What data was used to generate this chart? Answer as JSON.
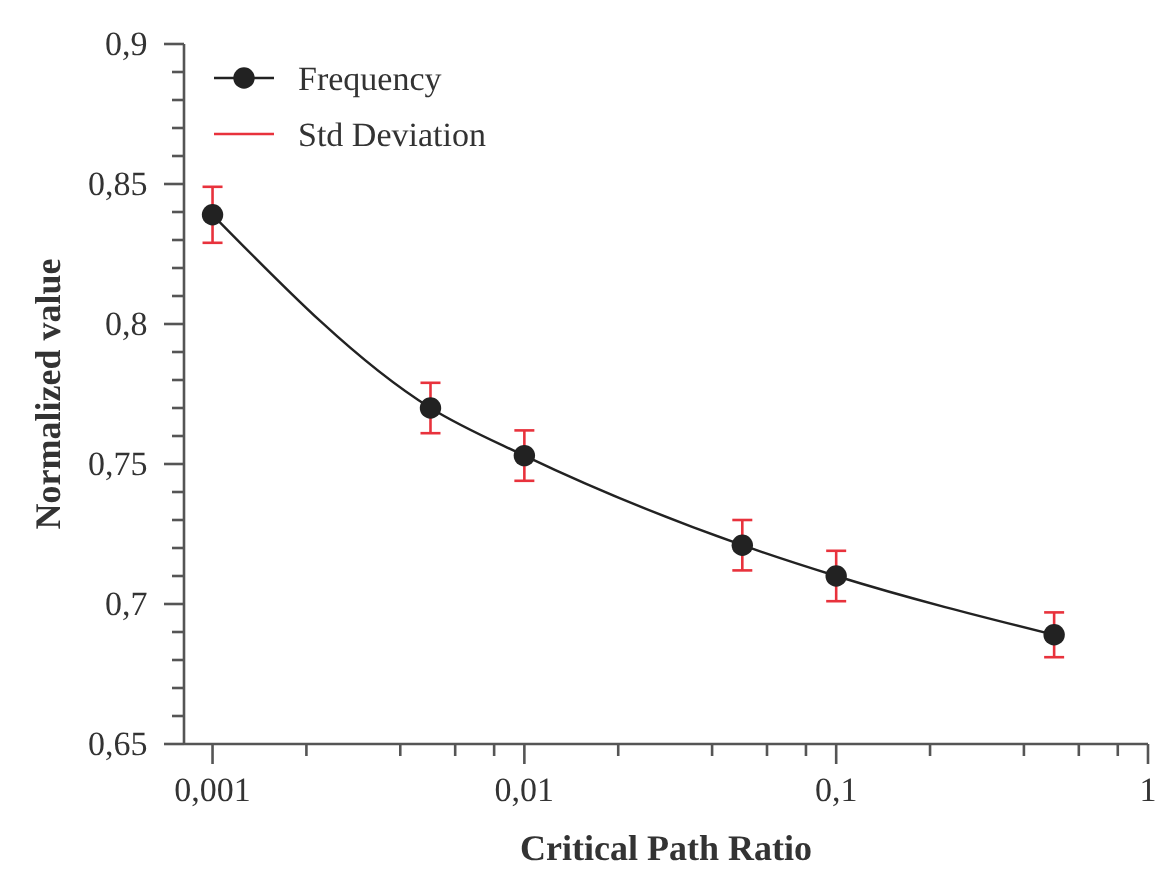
{
  "chart_data": {
    "type": "line",
    "xlabel": "Critical Path Ratio",
    "ylabel": "Normalized value",
    "log": "x",
    "x": [
      0.001,
      0.005,
      0.01,
      0.05,
      0.1,
      0.5
    ],
    "series": [
      {
        "name": "Frequency",
        "color": "#222222",
        "values": [
          0.839,
          0.77,
          0.753,
          0.721,
          0.71,
          0.689
        ],
        "errors": [
          0.01,
          0.009,
          0.009,
          0.009,
          0.009,
          0.008
        ]
      }
    ],
    "annotations": [
      "Std Deviation"
    ],
    "xlim": [
      0.00081,
      1
    ],
    "xticks": [
      {
        "value": 0.001,
        "label": "0,001"
      },
      {
        "value": 0.002,
        "label": null
      },
      {
        "value": 0.004,
        "label": null
      },
      {
        "value": 0.006,
        "label": null
      },
      {
        "value": 0.008,
        "label": null
      },
      {
        "value": 0.01,
        "label": "0,01"
      },
      {
        "value": 0.02,
        "label": null
      },
      {
        "value": 0.04,
        "label": null
      },
      {
        "value": 0.06,
        "label": null
      },
      {
        "value": 0.08,
        "label": null
      },
      {
        "value": 0.1,
        "label": "0,1"
      },
      {
        "value": 0.2,
        "label": null
      },
      {
        "value": 0.4,
        "label": null
      },
      {
        "value": 0.6,
        "label": null
      },
      {
        "value": 0.8,
        "label": null
      },
      1
    ],
    "ylim": [
      0.65,
      0.9
    ],
    "yticks": [
      {
        "value": 0.65,
        "label": "0,65"
      },
      {
        "value": 0.66,
        "label": null
      },
      {
        "value": 0.67,
        "label": null
      },
      {
        "value": 0.68,
        "label": null
      },
      {
        "value": 0.69,
        "label": null
      },
      {
        "value": 0.7,
        "label": "0,7"
      },
      {
        "value": 0.71,
        "label": null
      },
      {
        "value": 0.72,
        "label": null
      },
      {
        "value": 0.73,
        "label": null
      },
      {
        "value": 0.74,
        "label": null
      },
      {
        "value": 0.75,
        "label": "0,75"
      },
      {
        "value": 0.76,
        "label": null
      },
      {
        "value": 0.77,
        "label": null
      },
      {
        "value": 0.78,
        "label": null
      },
      {
        "value": 0.79,
        "label": null
      },
      {
        "value": 0.8,
        "label": "0,8"
      },
      {
        "value": 0.81,
        "label": null
      },
      {
        "value": 0.82,
        "label": null
      },
      {
        "value": 0.83,
        "label": null
      },
      {
        "value": 0.84,
        "label": null
      },
      {
        "value": 0.85,
        "label": "0,85"
      },
      {
        "value": 0.86,
        "label": null
      },
      {
        "value": 0.87,
        "label": null
      },
      {
        "value": 0.88,
        "label": null
      },
      {
        "value": 0.89,
        "label": null
      },
      {
        "value": 0.9,
        "label": "0,9"
      }
    ],
    "legend": "top left",
    "marker": "circle",
    "line_style": "solid",
    "grid": false
  }
}
